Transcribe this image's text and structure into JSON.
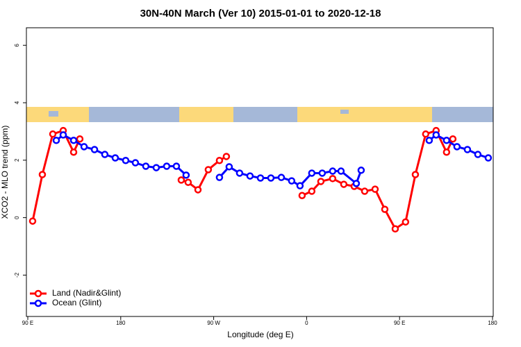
{
  "chart_data": {
    "type": "line",
    "title": "30N-40N March (Ver 10)   2015-01-01 to 2020-12-18",
    "x_label": "Longitude (deg E)",
    "y_label": "XCO2 - MLO trend (ppm)",
    "xlim": [
      90,
      540
    ],
    "ylim": [
      -3.44,
      6.61
    ],
    "xticks": [
      {
        "value": 90,
        "label": "90 E"
      },
      180,
      {
        "value": 270,
        "label": "90 W"
      },
      {
        "value": 360,
        "label": "0"
      },
      {
        "value": 450,
        "label": "90 E"
      },
      {
        "value": 540,
        "label": "180"
      }
    ],
    "yticks": [
      -2,
      0,
      2,
      4,
      6
    ],
    "legend": "bottomleft",
    "series": [
      {
        "name": "Land (Nadir&Glint)",
        "color": "#ff0000",
        "x": [
          94.7,
          104.1,
          114.2,
          124.3,
          134.4,
          140.4,
          null,
          238.6,
          245.3,
          254.8,
          264.8,
          275.6,
          282.3,
          null,
          355.6,
          365.0,
          373.8,
          385.2,
          396.0,
          406.1,
          416.2,
          426.3,
          435.7,
          445.8,
          455.8,
          465.3,
          475.3,
          485.4,
          495.5,
          501.6
        ],
        "values": [
          -0.12,
          1.5,
          2.91,
          3.03,
          2.28,
          2.74,
          null,
          1.31,
          1.23,
          0.97,
          1.67,
          1.99,
          2.13,
          null,
          0.77,
          0.92,
          1.26,
          1.36,
          1.16,
          1.09,
          0.92,
          0.99,
          0.29,
          -0.39,
          -0.15,
          1.5,
          2.91,
          3.03,
          2.28,
          2.74
        ]
      },
      {
        "name": "Ocean (Glint)",
        "color": "#0000ff",
        "x": [
          117.6,
          124.3,
          134.4,
          144.5,
          154.6,
          164.6,
          174.7,
          184.8,
          194.2,
          204.3,
          214.4,
          224.5,
          233.9,
          243.3,
          null,
          275.6,
          285.0,
          295.1,
          305.2,
          315.3,
          325.4,
          335.5,
          345.5,
          353.6,
          365.0,
          375.1,
          385.2,
          393.3,
          408.1,
          412.8,
          null,
          478.7,
          485.4,
          495.5,
          505.6,
          515.7,
          525.8,
          535.9
        ],
        "values": [
          2.69,
          2.88,
          2.69,
          2.47,
          2.37,
          2.2,
          2.08,
          1.99,
          1.91,
          1.79,
          1.74,
          1.79,
          1.79,
          1.48,
          null,
          1.4,
          1.77,
          1.55,
          1.45,
          1.38,
          1.38,
          1.4,
          1.28,
          1.11,
          1.55,
          1.55,
          1.62,
          1.62,
          1.19,
          1.65,
          null,
          2.69,
          2.88,
          2.69,
          2.47,
          2.37,
          2.2,
          2.08
        ]
      }
    ]
  }
}
